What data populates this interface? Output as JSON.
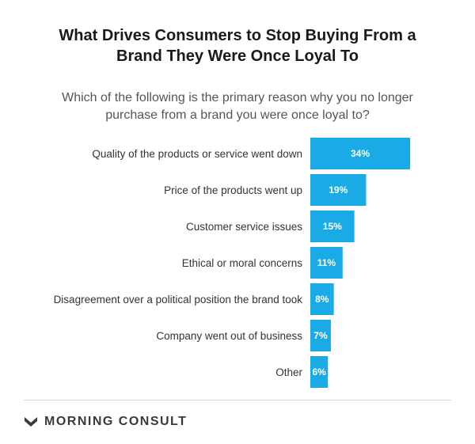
{
  "title_line1": "What Drives Consumers to Stop Buying From a",
  "title_line2": "Brand They Were Once Loyal To",
  "subtitle_line1": "Which of the following is the primary reason why you no longer",
  "subtitle_line2": "purchase from a brand you were once loyal to?",
  "footer": {
    "brand": "MORNING CONSULT",
    "logo_icon": "morning-consult-logo-icon"
  },
  "colors": {
    "bar": "#1aabe6",
    "bar_text": "#ffffff"
  },
  "chart_data": {
    "type": "bar",
    "orientation": "horizontal",
    "categories": [
      "Quality of the products or service went down",
      "Price of the products went up",
      "Customer service issues",
      "Ethical or moral concerns",
      "Disagreement over a political position the brand took",
      "Company went out of business",
      "Other"
    ],
    "values": [
      34,
      19,
      15,
      11,
      8,
      7,
      6
    ],
    "value_labels": [
      "34%",
      "19%",
      "15%",
      "11%",
      "8%",
      "7%",
      "6%"
    ],
    "xlim": [
      0,
      34
    ],
    "grid": false,
    "legend": "none"
  }
}
